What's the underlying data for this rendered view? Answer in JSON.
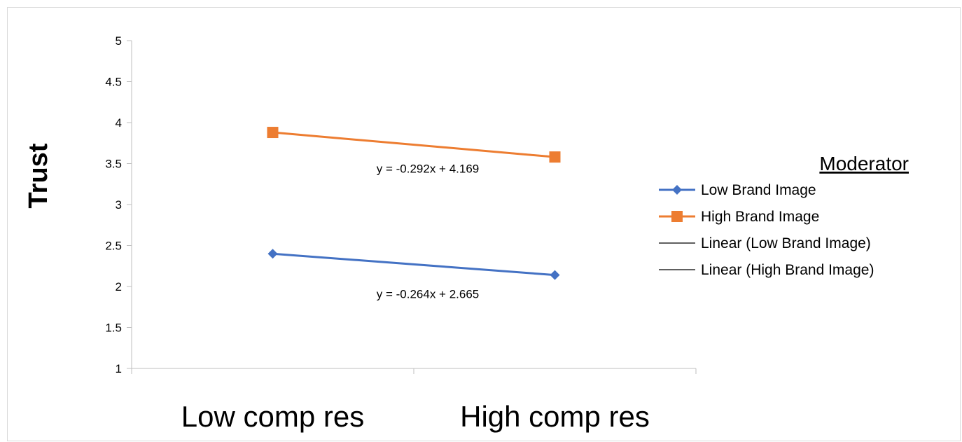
{
  "chart_data": {
    "type": "line",
    "categories": [
      "Low comp res",
      "High comp res"
    ],
    "ylabel": "Trust",
    "xlabel": "",
    "ylim": [
      1,
      5
    ],
    "yticks": [
      "1",
      "1.5",
      "2",
      "2.5",
      "3",
      "3.5",
      "4",
      "4.5",
      "5"
    ],
    "grid": false,
    "legend_position": "right",
    "legend_title": "Moderator",
    "series": [
      {
        "name": "Low Brand Image",
        "values": [
          2.4,
          2.14
        ],
        "color": "#4472c4",
        "marker": "diamond"
      },
      {
        "name": "High Brand Image",
        "values": [
          3.88,
          3.58
        ],
        "color": "#ed7d31",
        "marker": "square"
      }
    ],
    "trendlines": [
      {
        "name": "Linear (Low Brand Image)",
        "equation": "y = -0.264x + 2.665",
        "color": "#000000"
      },
      {
        "name": "Linear (High Brand Image)",
        "equation": "y = -0.292x + 4.169",
        "color": "#000000"
      }
    ]
  }
}
